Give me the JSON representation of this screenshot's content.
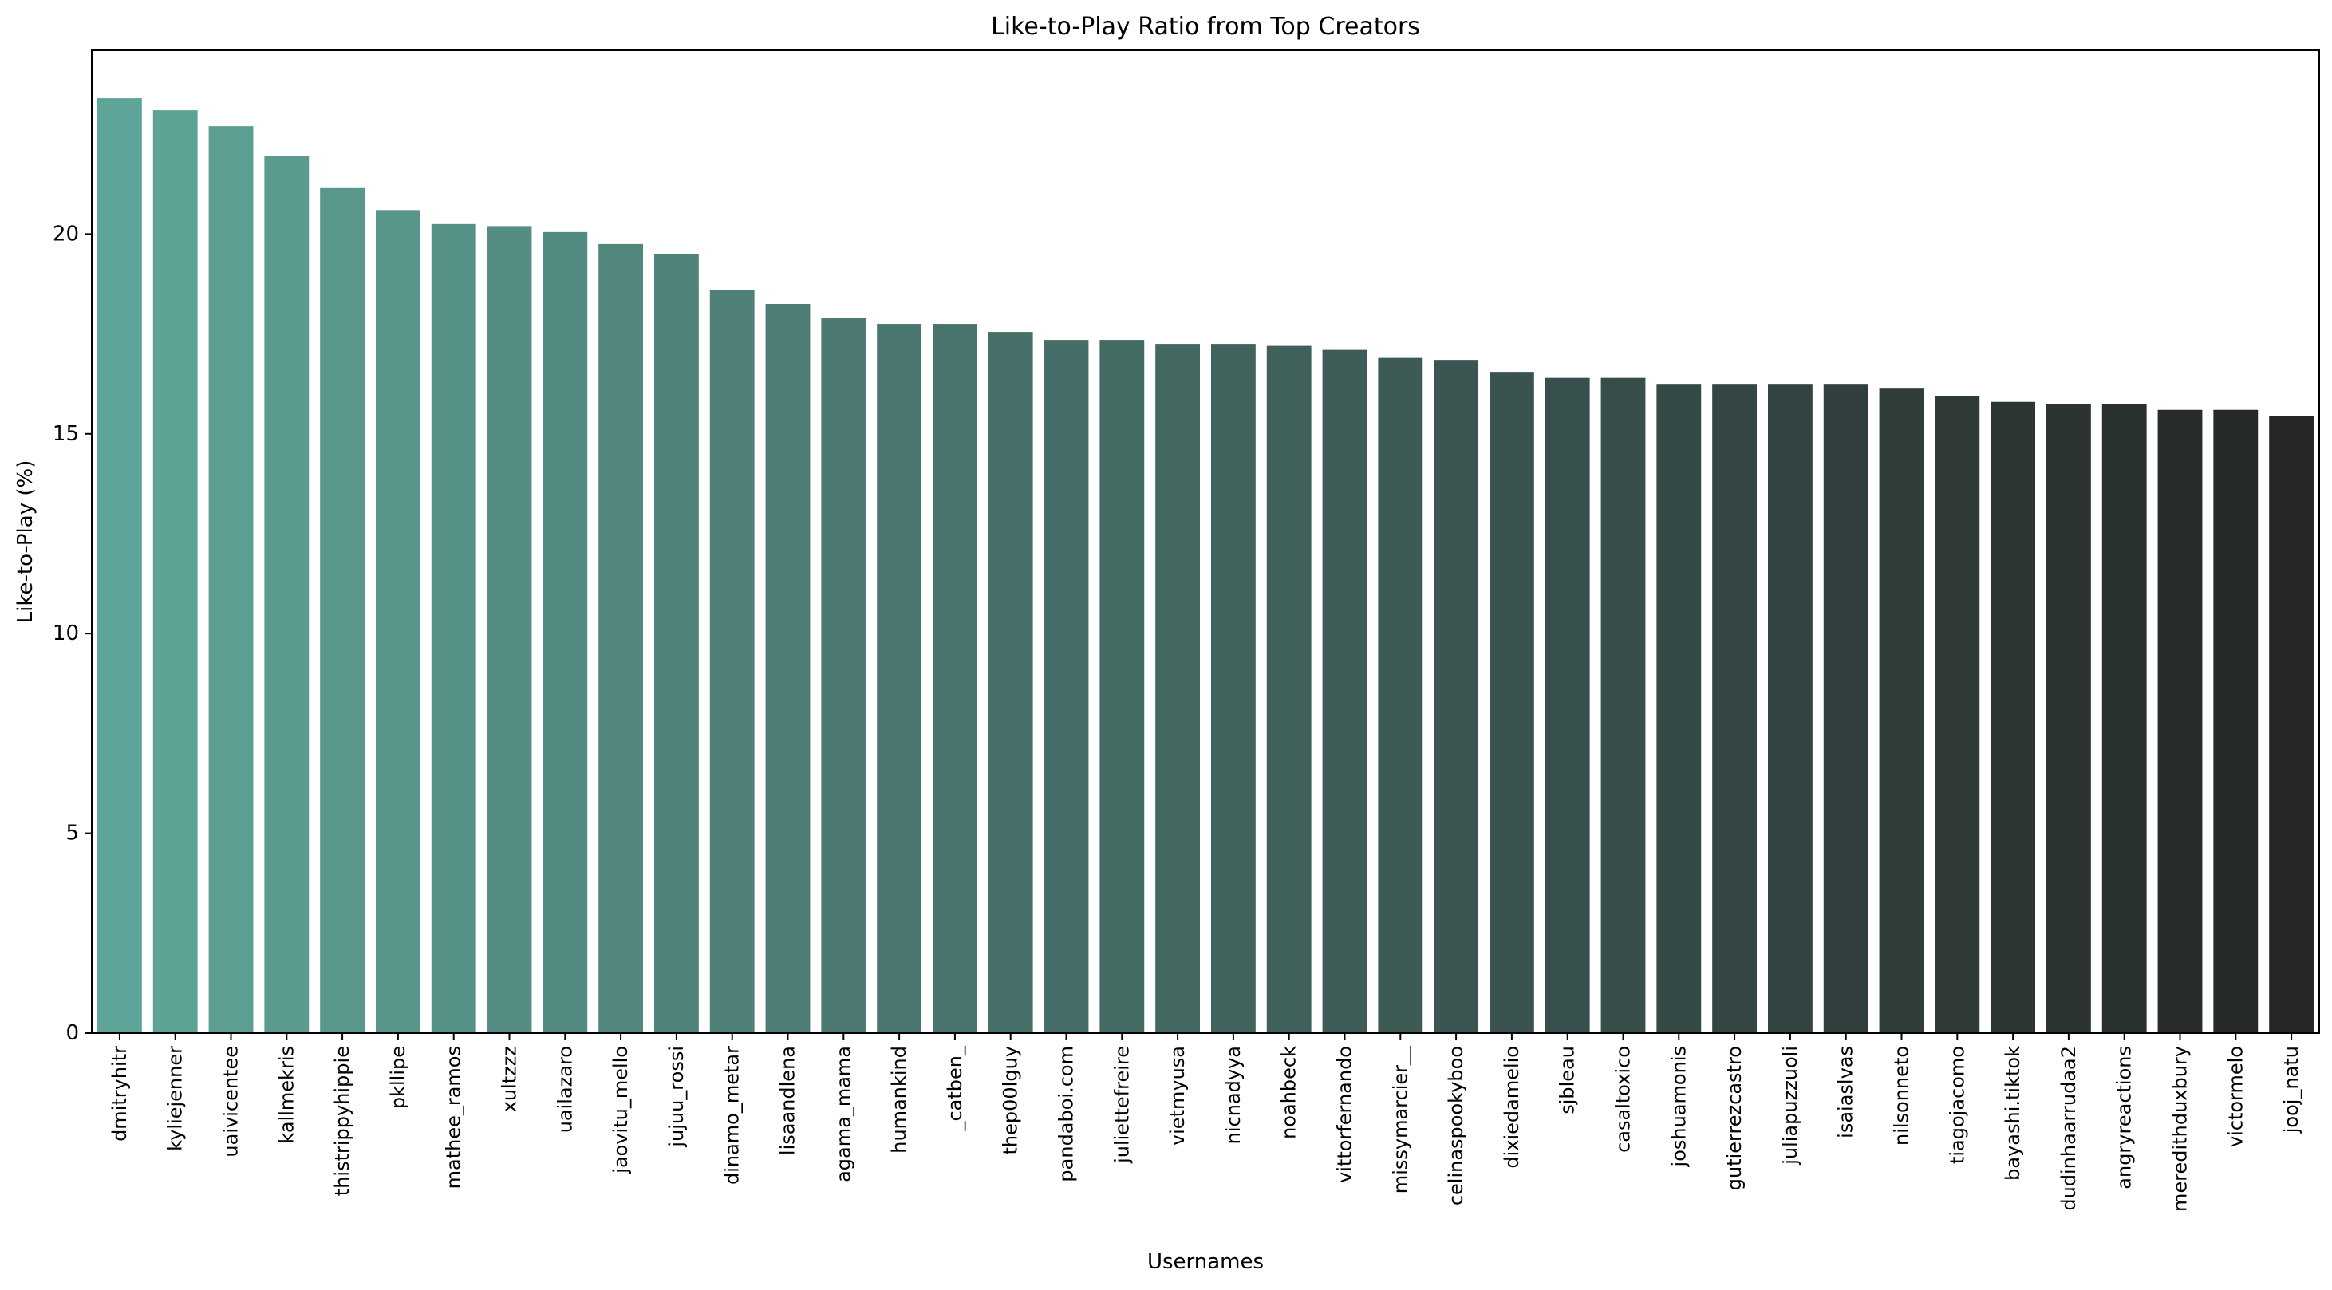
{
  "chart_data": {
    "type": "bar",
    "title": "Like-to-Play Ratio from Top Creators",
    "xlabel": "Usernames",
    "ylabel": "Like-to-Play (%)",
    "ylim": [
      0,
      24.6
    ],
    "yticks": [
      0,
      5,
      10,
      15,
      20
    ],
    "grid": false,
    "legend": "none",
    "palette": {
      "start": "#5fa498",
      "end": "#252627"
    },
    "categories": [
      "dmitryhitr",
      "kyliejenner",
      "uaivicentee",
      "kallmekris",
      "thistrippyhippie",
      "pkllipe",
      "mathee_ramos",
      "xultzzz",
      "uailazaro",
      "jaovitu_mello",
      "jujuu_rossi",
      "dinamo_metar",
      "lisaandlena",
      "agama_mama",
      "humankind",
      "_catben_",
      "thep00lguy",
      "pandaboi.com",
      "juliettefreire",
      "vietmyusa",
      "nicnadyya",
      "noahbeck",
      "vittorfernando",
      "missymarcier__",
      "celinaspookyboo",
      "dixiedamelio",
      "sjbleau",
      "casaltoxico",
      "joshuamonis",
      "gutierrezcastro",
      "juliapuzzuoli",
      "isaiaslvas",
      "nilsonneto",
      "tiagojacomo",
      "bayashi.tiktok",
      "dudinhaarrudaa2",
      "angryreactions",
      "meredithduxbury",
      "victormelo",
      "jooj_natu"
    ],
    "values": [
      23.4,
      23.1,
      22.7,
      21.95,
      21.15,
      20.6,
      20.25,
      20.2,
      20.05,
      19.75,
      19.5,
      18.6,
      18.25,
      17.9,
      17.75,
      17.75,
      17.55,
      17.35,
      17.35,
      17.25,
      17.25,
      17.2,
      17.1,
      16.9,
      16.85,
      16.55,
      16.4,
      16.4,
      16.25,
      16.25,
      16.25,
      16.25,
      16.15,
      15.95,
      15.8,
      15.75,
      15.75,
      15.6,
      15.6,
      15.45
    ]
  }
}
